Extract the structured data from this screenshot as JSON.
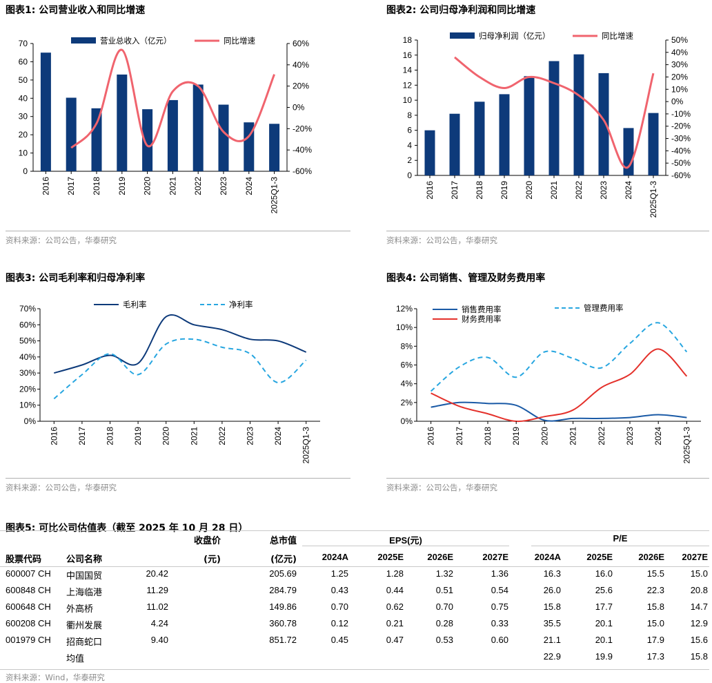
{
  "exhibits": [
    {
      "caption": "图表1:  公司营业收入和同比增速",
      "source": "资料来源：公司公告，华泰研究"
    },
    {
      "caption": "图表2:  公司归母净利润和同比增速",
      "source": "资料来源：公司公告，华泰研究"
    },
    {
      "caption": "图表3:  公司毛利率和归母净利率",
      "source": "资料来源：公司公告，华泰研究"
    },
    {
      "caption": "图表4:  公司销售、管理及财务费用率",
      "source": "资料来源：公司公告，华泰研究"
    }
  ],
  "colors": {
    "navy": "#0d3a7a",
    "coral": "#f0646e",
    "skyblue": "#27a6e0",
    "red": "#e4312b",
    "blue": "#1a5aa6"
  },
  "chart_data": [
    {
      "type": "bar+line",
      "title": "公司营业收入和同比增速",
      "categories": [
        "2016",
        "2017",
        "2018",
        "2019",
        "2020",
        "2021",
        "2022",
        "2023",
        "2024",
        "2025Q1-3"
      ],
      "series": [
        {
          "name": "营业总收入（亿元）",
          "kind": "bar",
          "axis": "left",
          "values": [
            65.0,
            40.3,
            34.5,
            53.0,
            34.0,
            39.0,
            47.5,
            36.5,
            26.8,
            26.0
          ]
        },
        {
          "name": "同比增速",
          "kind": "line",
          "axis": "right",
          "values": [
            null,
            -38,
            -15,
            54,
            -36,
            15,
            20,
            -23,
            -27,
            31
          ]
        }
      ],
      "ylim_left": [
        0,
        70
      ],
      "yticks_left": [
        "0",
        "10",
        "20",
        "30",
        "40",
        "50",
        "60",
        "70"
      ],
      "ylim_right": [
        -60,
        60
      ],
      "yticks_right": [
        "-60%",
        "-40%",
        "-20%",
        "0%",
        "20%",
        "40%",
        "60%"
      ]
    },
    {
      "type": "bar+line",
      "title": "公司归母净利润和同比增速",
      "categories": [
        "2016",
        "2017",
        "2018",
        "2019",
        "2020",
        "2021",
        "2022",
        "2023",
        "2024",
        "2025Q1-3"
      ],
      "series": [
        {
          "name": "归母净利润（亿元）",
          "kind": "bar",
          "axis": "left",
          "values": [
            6.0,
            8.2,
            9.8,
            10.8,
            13.2,
            15.2,
            16.1,
            13.6,
            6.3,
            8.3
          ]
        },
        {
          "name": "同比增速",
          "kind": "line",
          "axis": "right",
          "values": [
            null,
            36,
            20,
            11,
            20,
            15,
            5,
            -15,
            -53,
            23
          ]
        }
      ],
      "ylim_left": [
        0,
        18
      ],
      "yticks_left": [
        "0",
        "2",
        "4",
        "6",
        "8",
        "10",
        "12",
        "14",
        "16",
        "18"
      ],
      "ylim_right": [
        -60,
        50
      ],
      "yticks_right": [
        "-60%",
        "-50%",
        "-40%",
        "-30%",
        "-20%",
        "-10%",
        "0%",
        "10%",
        "20%",
        "30%",
        "40%",
        "50%"
      ]
    },
    {
      "type": "line",
      "title": "公司毛利率和归母净利率",
      "categories": [
        "2016",
        "2017",
        "2018",
        "2019",
        "2020",
        "2021",
        "2022",
        "2023",
        "2024",
        "2025Q1-3"
      ],
      "series": [
        {
          "name": "毛利率",
          "style": "solid",
          "values": [
            30,
            35,
            41,
            36,
            65,
            60,
            57,
            51,
            50,
            43
          ]
        },
        {
          "name": "净利率",
          "style": "dashed",
          "values": [
            14,
            29,
            42,
            29,
            48,
            51,
            46,
            42,
            24,
            38
          ]
        }
      ],
      "ylim": [
        0,
        70
      ],
      "yticks": [
        "0%",
        "10%",
        "20%",
        "30%",
        "40%",
        "50%",
        "60%",
        "70%"
      ]
    },
    {
      "type": "line",
      "title": "公司销售、管理及财务费用率",
      "categories": [
        "2016",
        "2017",
        "2018",
        "2019",
        "2020",
        "2021",
        "2022",
        "2023",
        "2024",
        "2025Q1-3"
      ],
      "series": [
        {
          "name": "销售费用率",
          "style": "solid",
          "values": [
            1.5,
            2.0,
            1.9,
            1.7,
            0.1,
            0.3,
            0.3,
            0.4,
            0.7,
            0.4
          ]
        },
        {
          "name": "管理费用率",
          "style": "dashed",
          "values": [
            3.2,
            5.8,
            6.8,
            4.7,
            7.4,
            6.7,
            5.7,
            8.3,
            10.5,
            7.4
          ]
        },
        {
          "name": "财务费用率",
          "style": "solid",
          "values": [
            3.0,
            1.6,
            0.8,
            0.0,
            0.5,
            1.2,
            3.6,
            5.0,
            7.7,
            4.8
          ]
        }
      ],
      "ylim": [
        0,
        12
      ],
      "yticks": [
        "0%",
        "2%",
        "4%",
        "6%",
        "8%",
        "10%",
        "12%"
      ]
    },
    {
      "type": "table",
      "title": "图表5:  可比公司估值表（截至 2025 年 10 月 28 日）",
      "header_top": {
        "price": "收盘价",
        "mcap": "总市值",
        "eps": "EPS(元)",
        "pe": "P/E"
      },
      "header_bottom": {
        "code": "股票代码",
        "name": "公司名称",
        "price_unit": "(元)",
        "mcap_unit": "(亿元)",
        "years": [
          "2024A",
          "2025E",
          "2026E",
          "2027E"
        ]
      },
      "rows": [
        {
          "code": "600007 CH",
          "name": "中国国贸",
          "price": "20.42",
          "mcap": "205.69",
          "eps": [
            "1.25",
            "1.28",
            "1.32",
            "1.36"
          ],
          "pe": [
            "16.3",
            "16.0",
            "15.5",
            "15.0"
          ]
        },
        {
          "code": "600848 CH",
          "name": "上海临港",
          "price": "11.29",
          "mcap": "284.79",
          "eps": [
            "0.43",
            "0.44",
            "0.51",
            "0.54"
          ],
          "pe": [
            "26.0",
            "25.6",
            "22.3",
            "20.8"
          ]
        },
        {
          "code": "600648 CH",
          "name": "外高桥",
          "price": "11.02",
          "mcap": "149.86",
          "eps": [
            "0.70",
            "0.62",
            "0.70",
            "0.75"
          ],
          "pe": [
            "15.8",
            "17.7",
            "15.8",
            "14.7"
          ]
        },
        {
          "code": "600208 CH",
          "name": "衢州发展",
          "price": "4.24",
          "mcap": "360.78",
          "eps": [
            "0.12",
            "0.21",
            "0.28",
            "0.33"
          ],
          "pe": [
            "35.5",
            "20.1",
            "15.0",
            "12.9"
          ]
        },
        {
          "code": "001979 CH",
          "name": "招商蛇口",
          "price": "9.40",
          "mcap": "851.72",
          "eps": [
            "0.45",
            "0.47",
            "0.53",
            "0.60"
          ],
          "pe": [
            "21.1",
            "20.1",
            "17.9",
            "15.6"
          ]
        }
      ],
      "average": {
        "label": "均值",
        "pe": [
          "22.9",
          "19.9",
          "17.3",
          "15.8"
        ]
      },
      "source": "资料来源：Wind，华泰研究"
    }
  ]
}
